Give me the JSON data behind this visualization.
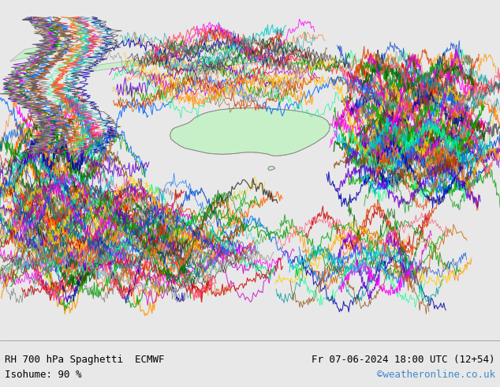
{
  "title_left": "RH 700 hPa Spaghetti  ECMWF",
  "title_right": "Fr 07-06-2024 18:00 UTC (12+54)",
  "subtitle_left": "Isohume: 90 %",
  "subtitle_right": "©weatheronline.co.uk",
  "background_color": "#e8e8e8",
  "land_color": "#c8f0c8",
  "ocean_color": "#e8e8e8",
  "text_color": "#000000",
  "link_color": "#4488cc",
  "bottom_bar_color": "#ffffff",
  "figsize": [
    6.34,
    4.9
  ],
  "dpi": 100
}
